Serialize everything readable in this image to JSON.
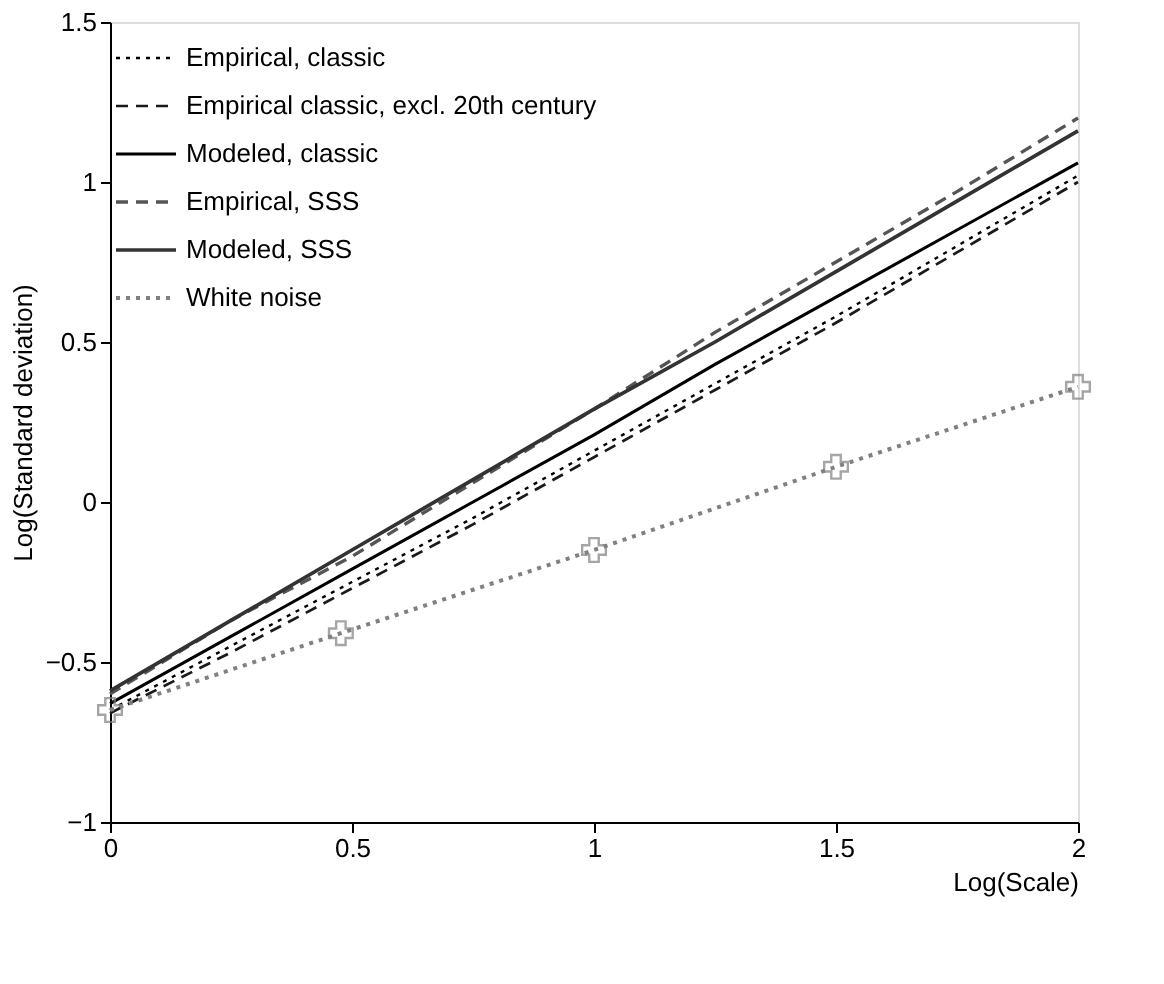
{
  "chart_data": {
    "type": "line",
    "xlabel": "Log(Scale)",
    "ylabel": "Log(Standard deviation)",
    "xlim": [
      0,
      2
    ],
    "xticks": [
      0,
      0.5,
      1,
      1.5,
      2
    ],
    "ylim": [
      -1,
      1.5
    ],
    "yticks": [
      -1,
      -0.5,
      0,
      0.5,
      1,
      1.5
    ],
    "grid": false,
    "legend": "top left",
    "x": [
      0,
      0.25,
      0.5,
      0.75,
      1,
      1.25,
      1.5,
      1.75,
      2
    ],
    "series": [
      {
        "name": "Empirical, classic",
        "color": "#000000",
        "line_style": "dotted",
        "marker": "none",
        "values": [
          -0.65,
          -0.45,
          -0.25,
          -0.05,
          0.16,
          0.37,
          0.58,
          0.8,
          1.02
        ]
      },
      {
        "name": "Empirical classic, excl. 20th century",
        "color": "#1a1a1a",
        "line_style": "dashed",
        "marker": "none",
        "values": [
          -0.66,
          -0.47,
          -0.27,
          -0.07,
          0.14,
          0.35,
          0.56,
          0.78,
          1.0
        ]
      },
      {
        "name": "Modeled, classic",
        "color": "#000000",
        "line_style": "solid",
        "marker": "none",
        "values": [
          -0.63,
          -0.42,
          -0.21,
          0.0,
          0.21,
          0.43,
          0.64,
          0.85,
          1.06
        ]
      },
      {
        "name": "Empirical, SSS",
        "color": "#555555",
        "line_style": "dashed",
        "marker": "none",
        "values": [
          -0.6,
          -0.37,
          -0.17,
          0.06,
          0.29,
          0.53,
          0.75,
          0.97,
          1.2
        ]
      },
      {
        "name": "Modeled, SSS",
        "color": "#333333",
        "line_style": "solid",
        "marker": "none",
        "values": [
          -0.59,
          -0.37,
          -0.15,
          0.07,
          0.29,
          0.5,
          0.72,
          0.94,
          1.16
        ]
      },
      {
        "name": "White noise",
        "color": "#808080",
        "line_style": "dotted",
        "marker": "cross",
        "x": [
          0,
          0.477,
          1,
          1.5,
          2
        ],
        "values": [
          -0.65,
          -0.41,
          -0.15,
          0.11,
          0.36
        ]
      }
    ]
  }
}
